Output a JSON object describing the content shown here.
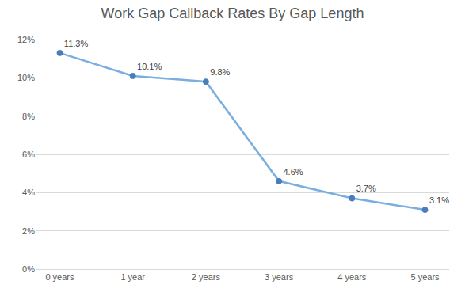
{
  "chart_data": {
    "type": "line",
    "title": "Work Gap Callback Rates By Gap Length",
    "categories": [
      "0 years",
      "1 year",
      "2 years",
      "3 years",
      "4 years",
      "5 years"
    ],
    "values": [
      11.3,
      10.1,
      9.8,
      4.6,
      3.7,
      3.1
    ],
    "value_labels": [
      "11.3%",
      "10.1%",
      "9.8%",
      "4.6%",
      "3.7%",
      "3.1%"
    ],
    "data_labels": true,
    "color": "#7aaee0",
    "marker": "circle",
    "ylim": [
      0,
      12
    ],
    "yticks": [
      {
        "value": 0,
        "label": "0%"
      },
      {
        "value": 2,
        "label": "2%"
      },
      {
        "value": 4,
        "label": "4%"
      },
      {
        "value": 6,
        "label": "6%"
      },
      {
        "value": 8,
        "label": "8%"
      },
      {
        "value": 10,
        "label": "10%"
      },
      {
        "value": 12,
        "label": "12%"
      }
    ],
    "grid": true
  }
}
